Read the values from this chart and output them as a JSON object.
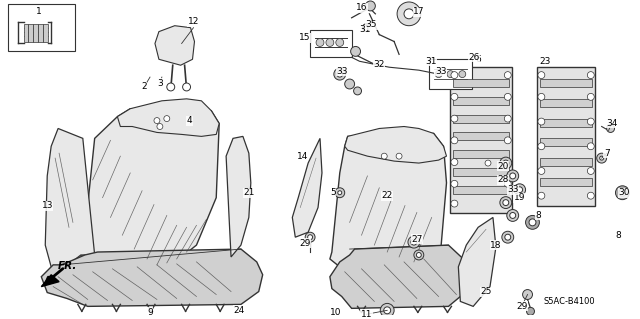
{
  "background_color": "#ffffff",
  "diagram_code": "S5AC-B4100",
  "fr_label": "FR.",
  "line_color": "#333333",
  "fill_color": "#e8e8e8",
  "fill_dark": "#d0d0d0",
  "label_fontsize": 6.5
}
